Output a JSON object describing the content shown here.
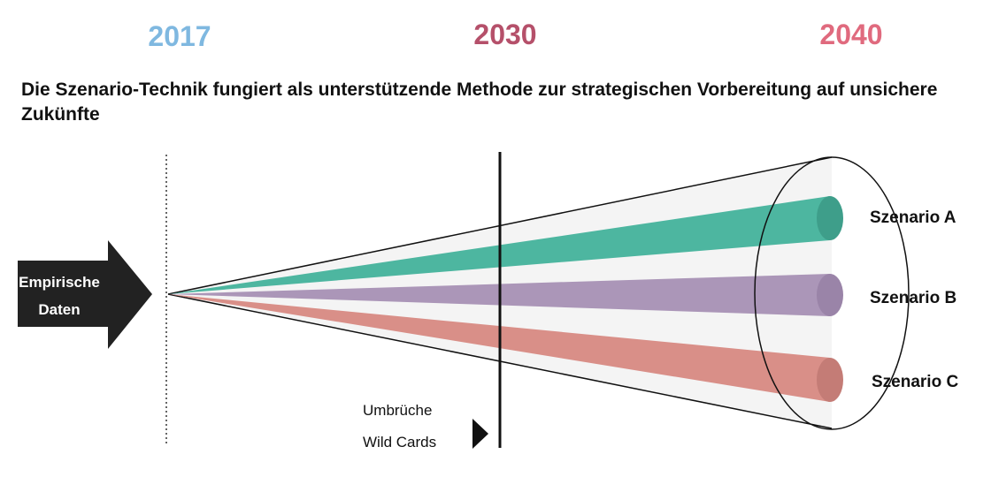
{
  "years": [
    "2017",
    "2030",
    "2040"
  ],
  "title": "Die Szenario-Technik fungiert als unterstützende Methode zur strategischen Vorbereitung auf unsichere Zukünfte",
  "arrow_label": [
    "Empirische",
    "Daten"
  ],
  "scenarios": [
    "Szenario A",
    "Szenario B",
    "Szenario C"
  ],
  "disruptions": [
    "Umbrüche",
    "Wild Cards"
  ]
}
